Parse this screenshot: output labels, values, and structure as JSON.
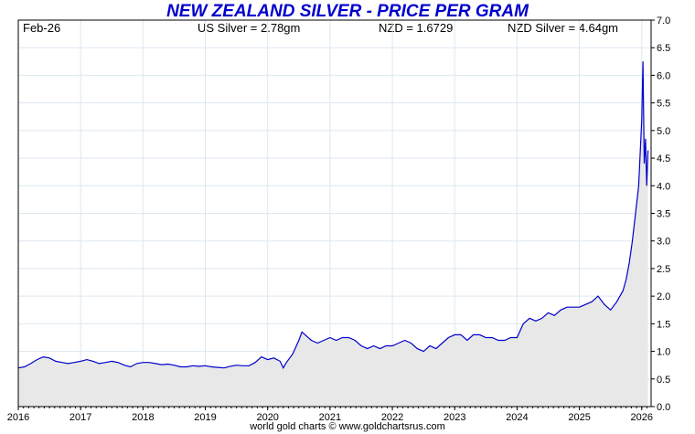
{
  "header": {
    "title": "NEW ZEALAND SILVER - PRICE PER GRAM",
    "date": "Feb-26",
    "us_silver": "US Silver = 2.78gm",
    "nzd": "NZD = 1.6729",
    "nzd_silver": "NZD Silver = 4.64gm"
  },
  "footer": {
    "credit": "world gold charts © www.goldchartsrus.com"
  },
  "chart_data": {
    "type": "area",
    "title": "NEW ZEALAND SILVER - PRICE PER GRAM",
    "xlabel": "",
    "ylabel": "",
    "xlim": [
      2016,
      2026.15
    ],
    "ylim": [
      0,
      7
    ],
    "x_ticks": [
      "2016",
      "2017",
      "2018",
      "2019",
      "2020",
      "2021",
      "2022",
      "2023",
      "2024",
      "2025",
      "2026"
    ],
    "y_ticks": [
      "0.0",
      "0.5",
      "1.0",
      "1.5",
      "2.0",
      "2.5",
      "3.0",
      "3.5",
      "4.0",
      "4.5",
      "5.0",
      "5.5",
      "6.0",
      "6.5",
      "7.0"
    ],
    "y_axis_side": "right",
    "grid": true,
    "line_color": "#0000cc",
    "fill_color": "#e8e8e8",
    "series": [
      {
        "x": [
          2016.0,
          2016.1,
          2016.2,
          2016.3,
          2016.4,
          2016.5,
          2016.6,
          2016.7,
          2016.8,
          2016.9,
          2017.0,
          2017.1,
          2017.2,
          2017.3,
          2017.4,
          2017.5,
          2017.6,
          2017.7,
          2017.8,
          2017.9,
          2018.0,
          2018.1,
          2018.2,
          2018.3,
          2018.4,
          2018.5,
          2018.6,
          2018.7,
          2018.8,
          2018.9,
          2019.0,
          2019.1,
          2019.2,
          2019.3,
          2019.4,
          2019.5,
          2019.6,
          2019.7,
          2019.8,
          2019.9,
          2020.0,
          2020.1,
          2020.2,
          2020.25,
          2020.3,
          2020.4,
          2020.5,
          2020.55,
          2020.6,
          2020.7,
          2020.8,
          2020.9,
          2021.0,
          2021.1,
          2021.2,
          2021.3,
          2021.4,
          2021.5,
          2021.6,
          2021.7,
          2021.8,
          2021.9,
          2022.0,
          2022.1,
          2022.2,
          2022.3,
          2022.4,
          2022.5,
          2022.6,
          2022.7,
          2022.8,
          2022.9,
          2023.0,
          2023.1,
          2023.2,
          2023.3,
          2023.4,
          2023.5,
          2023.6,
          2023.7,
          2023.8,
          2023.9,
          2024.0,
          2024.1,
          2024.2,
          2024.3,
          2024.4,
          2024.5,
          2024.6,
          2024.7,
          2024.8,
          2024.9,
          2025.0,
          2025.1,
          2025.2,
          2025.3,
          2025.4,
          2025.5,
          2025.6,
          2025.7,
          2025.75,
          2025.8,
          2025.85,
          2025.9,
          2025.95,
          2026.0,
          2026.02,
          2026.04,
          2026.06,
          2026.08,
          2026.1
        ],
        "values": [
          0.7,
          0.72,
          0.78,
          0.85,
          0.9,
          0.88,
          0.82,
          0.8,
          0.78,
          0.8,
          0.82,
          0.85,
          0.82,
          0.78,
          0.8,
          0.82,
          0.8,
          0.75,
          0.72,
          0.78,
          0.8,
          0.8,
          0.78,
          0.76,
          0.77,
          0.75,
          0.72,
          0.72,
          0.74,
          0.73,
          0.74,
          0.72,
          0.71,
          0.7,
          0.73,
          0.75,
          0.74,
          0.74,
          0.8,
          0.9,
          0.85,
          0.88,
          0.82,
          0.7,
          0.8,
          0.95,
          1.2,
          1.35,
          1.3,
          1.2,
          1.15,
          1.2,
          1.25,
          1.2,
          1.25,
          1.25,
          1.2,
          1.1,
          1.05,
          1.1,
          1.05,
          1.1,
          1.1,
          1.15,
          1.2,
          1.15,
          1.05,
          1.0,
          1.1,
          1.05,
          1.15,
          1.25,
          1.3,
          1.3,
          1.2,
          1.3,
          1.3,
          1.25,
          1.25,
          1.2,
          1.2,
          1.25,
          1.25,
          1.5,
          1.6,
          1.55,
          1.6,
          1.7,
          1.65,
          1.75,
          1.8,
          1.8,
          1.8,
          1.85,
          1.9,
          2.0,
          1.85,
          1.75,
          1.9,
          2.1,
          2.3,
          2.6,
          3.0,
          3.5,
          4.0,
          5.2,
          6.25,
          4.4,
          4.85,
          4.0,
          4.64
        ]
      }
    ]
  }
}
